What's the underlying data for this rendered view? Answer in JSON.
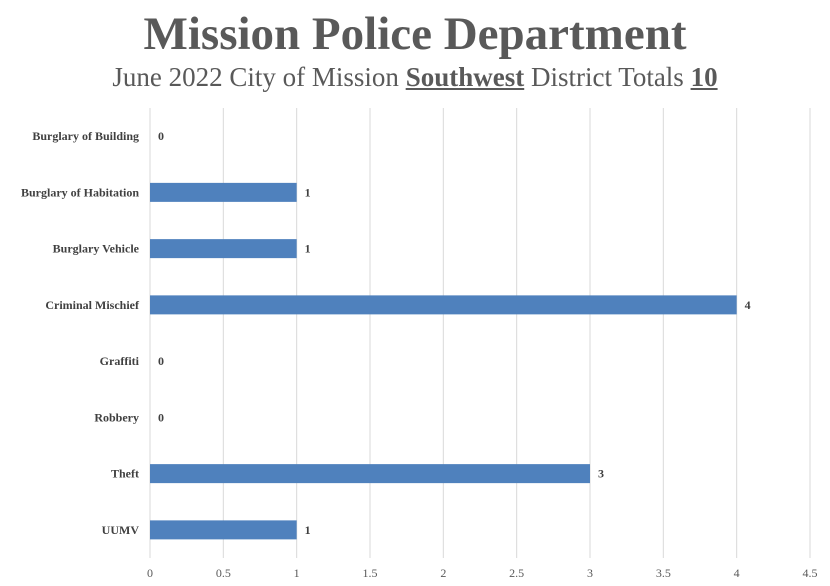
{
  "header": {
    "title": "Mission Police Department",
    "subtitle_pre": "June 2022 City of Mission ",
    "subtitle_district": "Southwest",
    "subtitle_mid": " District Totals ",
    "subtitle_total": "10"
  },
  "chart_data": {
    "type": "bar",
    "orientation": "horizontal",
    "title": "Mission Police Department",
    "subtitle": "June 2022 City of Mission Southwest District Totals 10",
    "categories": [
      "Burglary of Building",
      "Burglary of Habitation",
      "Burglary Vehicle",
      "Criminal Mischief",
      "Graffiti",
      "Robbery",
      "Theft",
      "UUMV"
    ],
    "values": [
      0,
      1,
      1,
      4,
      0,
      0,
      3,
      1
    ],
    "xlim": [
      0,
      4.5
    ],
    "xticks": [
      0,
      0.5,
      1,
      1.5,
      2,
      2.5,
      3,
      3.5,
      4,
      4.5
    ],
    "xlabel": "",
    "ylabel": "",
    "grid": true,
    "bar_color": "#4F81BD",
    "grid_color": "#D9D9D9"
  }
}
